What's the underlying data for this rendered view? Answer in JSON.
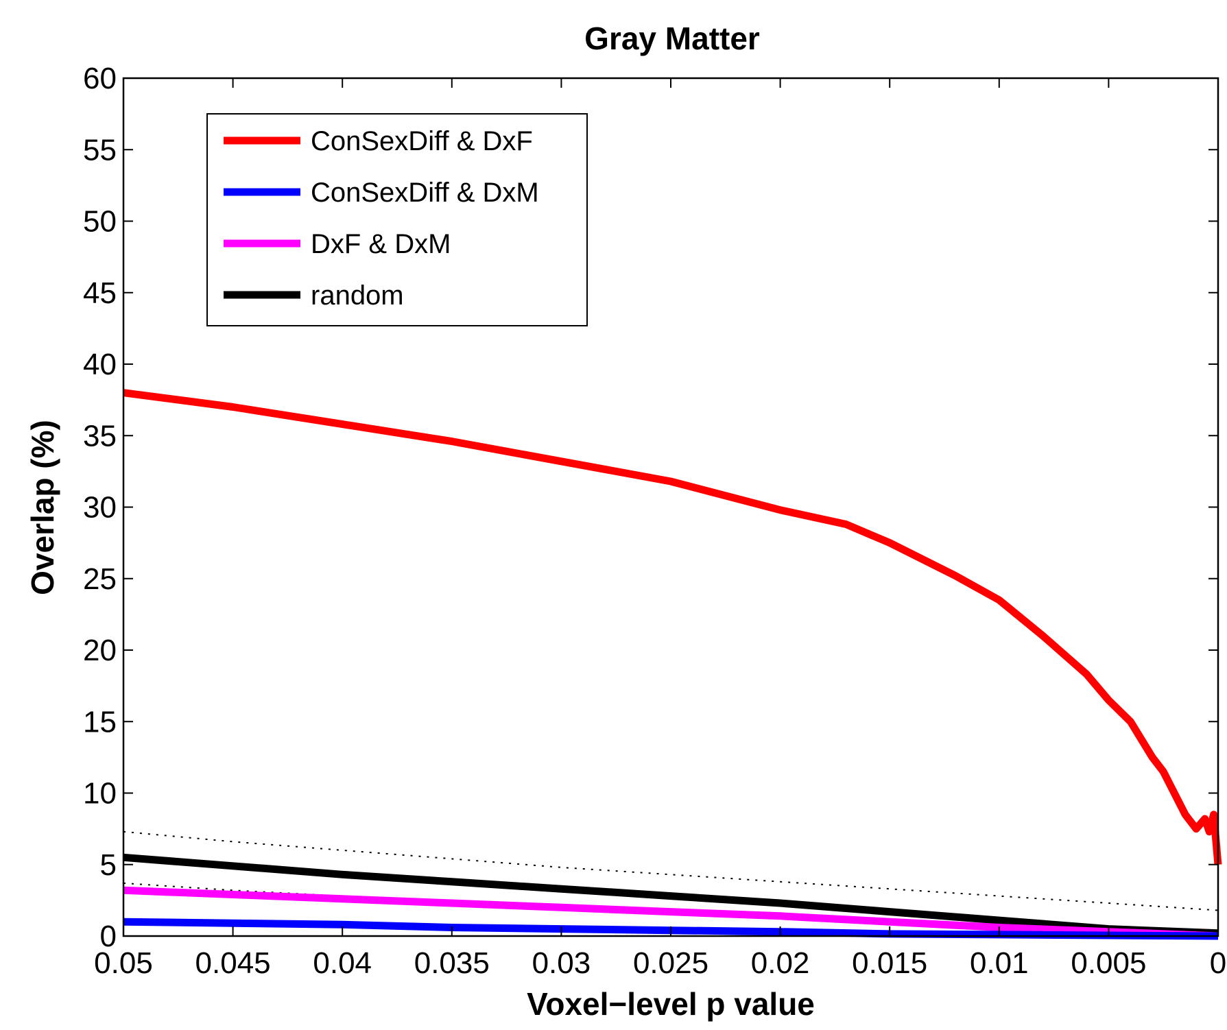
{
  "chart_data": {
    "type": "line",
    "title": "Gray Matter",
    "xlabel": "Voxel−level p value",
    "ylabel": "Overlap (%)",
    "xlim": [
      0.05,
      0
    ],
    "ylim": [
      0,
      60
    ],
    "x_reversed": true,
    "x_ticks": [
      0.05,
      0.045,
      0.04,
      0.035,
      0.03,
      0.025,
      0.02,
      0.015,
      0.01,
      0.005,
      0
    ],
    "x_tick_labels": [
      "0.05",
      "0.045",
      "0.04",
      "0.035",
      "0.03",
      "0.025",
      "0.02",
      "0.015",
      "0.01",
      "0.005",
      "0"
    ],
    "y_ticks": [
      0,
      5,
      10,
      15,
      20,
      25,
      30,
      35,
      40,
      45,
      50,
      55,
      60
    ],
    "y_tick_labels": [
      "0",
      "5",
      "10",
      "15",
      "20",
      "25",
      "30",
      "35",
      "40",
      "45",
      "50",
      "55",
      "60"
    ],
    "grid": false,
    "legend_position": "top-left",
    "series": [
      {
        "name": "ConSexDiff & DxF",
        "color": "#ff0000",
        "x": [
          0.05,
          0.045,
          0.04,
          0.035,
          0.03,
          0.025,
          0.02,
          0.017,
          0.015,
          0.012,
          0.01,
          0.008,
          0.006,
          0.005,
          0.004,
          0.003,
          0.0025,
          0.0015,
          0.001,
          0.0006,
          0.0004,
          0.0002,
          0.0
        ],
        "y": [
          38,
          37,
          35.8,
          34.6,
          33.2,
          31.8,
          29.8,
          28.8,
          27.5,
          25.2,
          23.5,
          21,
          18.3,
          16.5,
          15,
          12.5,
          11.5,
          8.5,
          7.5,
          8.2,
          7.3,
          8.5,
          5
        ]
      },
      {
        "name": "ConSexDiff & DxM",
        "color": "#0000ff",
        "x": [
          0.05,
          0.045,
          0.04,
          0.035,
          0.03,
          0.025,
          0.02,
          0.015,
          0.01,
          0.005,
          0.0
        ],
        "y": [
          1.0,
          0.9,
          0.8,
          0.6,
          0.5,
          0.4,
          0.3,
          0.15,
          0.1,
          0.05,
          0
        ]
      },
      {
        "name": "DxF & DxM",
        "color": "#ff00ff",
        "x": [
          0.05,
          0.045,
          0.04,
          0.035,
          0.03,
          0.025,
          0.02,
          0.015,
          0.01,
          0.005,
          0.0
        ],
        "y": [
          3.2,
          2.9,
          2.6,
          2.3,
          2.0,
          1.7,
          1.4,
          1.0,
          0.6,
          0.3,
          0.0
        ]
      },
      {
        "name": "random",
        "color": "#000000",
        "x": [
          0.05,
          0.045,
          0.04,
          0.035,
          0.03,
          0.025,
          0.02,
          0.015,
          0.01,
          0.005,
          0.0
        ],
        "y": [
          5.5,
          4.9,
          4.3,
          3.8,
          3.3,
          2.8,
          2.3,
          1.7,
          1.1,
          0.5,
          0.2
        ]
      }
    ],
    "random_bounds": {
      "color": "#000000",
      "upper": {
        "x": [
          0.05,
          0.045,
          0.04,
          0.035,
          0.03,
          0.025,
          0.02,
          0.015,
          0.01,
          0.005,
          0.0
        ],
        "y": [
          7.3,
          6.6,
          6.0,
          5.4,
          4.8,
          4.3,
          3.8,
          3.3,
          2.8,
          2.3,
          1.8
        ]
      },
      "lower": {
        "x": [
          0.05,
          0.045,
          0.04,
          0.035,
          0.03,
          0.025,
          0.02,
          0.015,
          0.01,
          0.005,
          0.0
        ],
        "y": [
          3.7,
          3.2,
          2.8,
          2.4,
          2.0,
          1.6,
          1.2,
          0.8,
          0.5,
          0.2,
          0.0
        ]
      }
    }
  }
}
